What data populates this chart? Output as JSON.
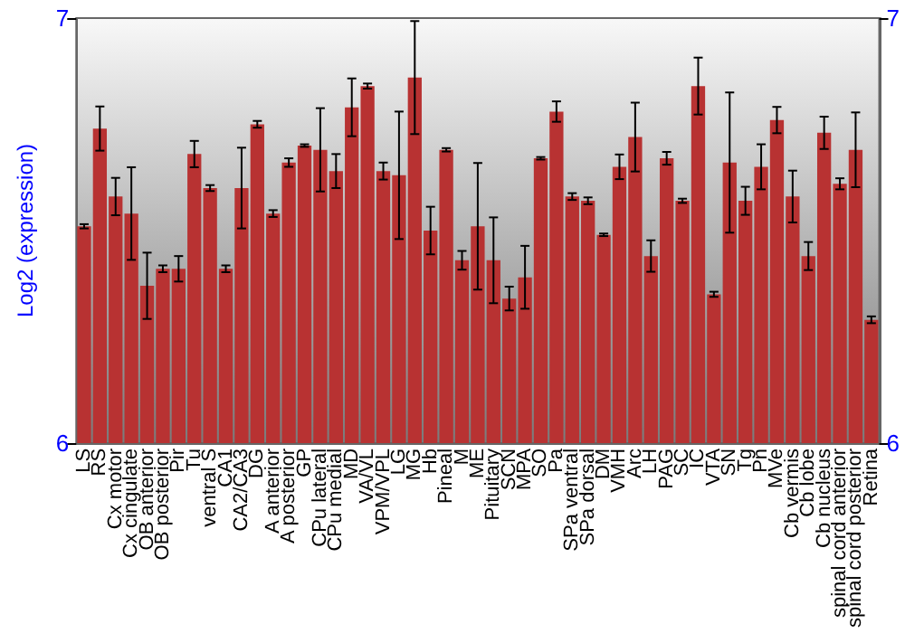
{
  "chart_data": {
    "type": "bar",
    "ylabel": "Log2 (expression)",
    "categories": [
      "LS",
      "RS",
      "Cx motor",
      "Cx cingulate",
      "OB anterior",
      "OB posterior",
      "Pir",
      "Tu",
      "ventral S",
      "CA1",
      "CA2/CA3",
      "DG",
      "A anterior",
      "A posterior",
      "GP",
      "CPu lateral",
      "CPu medial",
      "MD",
      "VA/VL",
      "VPM/VPL",
      "LG",
      "MG",
      "Hb",
      "Pineal",
      "M",
      "ME",
      "Pituitary",
      "SCN",
      "MPA",
      "SO",
      "Pa",
      "SPa ventral",
      "SPa dorsal",
      "DM",
      "VMH",
      "Arc",
      "LH",
      "PAG",
      "SC",
      "IC",
      "VTA",
      "SN",
      "Tg",
      "Pn",
      "MVe",
      "Cb vermis",
      "Cb lobe",
      "Cb nucleus",
      "spinal cord anterior",
      "spinal cord posterior",
      "Retina"
    ],
    "series": [
      {
        "color": "#b83232",
        "values": [
          6.51,
          6.74,
          6.58,
          6.54,
          6.37,
          6.41,
          6.41,
          6.68,
          6.6,
          6.41,
          6.6,
          6.75,
          6.54,
          6.66,
          6.7,
          6.69,
          6.64,
          6.79,
          6.84,
          6.64,
          6.63,
          6.86,
          6.5,
          6.69,
          6.43,
          6.51,
          6.43,
          6.34,
          6.39,
          6.67,
          6.78,
          6.58,
          6.57,
          6.49,
          6.65,
          6.72,
          6.44,
          6.67,
          6.57,
          6.84,
          6.35,
          6.66,
          6.57,
          6.65,
          6.76,
          6.58,
          6.44,
          6.73,
          6.61,
          6.69,
          6.29
        ],
        "errors": [
          0.005,
          0.052,
          0.044,
          0.109,
          0.078,
          0.008,
          0.03,
          0.031,
          0.007,
          0.008,
          0.095,
          0.008,
          0.008,
          0.01,
          0.003,
          0.098,
          0.04,
          0.068,
          0.006,
          0.02,
          0.15,
          0.133,
          0.056,
          0.004,
          0.022,
          0.149,
          0.101,
          0.028,
          0.074,
          0.003,
          0.024,
          0.008,
          0.008,
          0.003,
          0.029,
          0.081,
          0.037,
          0.015,
          0.005,
          0.067,
          0.006,
          0.165,
          0.033,
          0.053,
          0.031,
          0.061,
          0.033,
          0.038,
          0.013,
          0.088,
          0.008
        ]
      }
    ],
    "ylim": [
      6,
      7
    ],
    "yticks": [
      6,
      7
    ],
    "y2lim": [
      6,
      7
    ],
    "y2ticks": [
      6,
      7
    ]
  }
}
